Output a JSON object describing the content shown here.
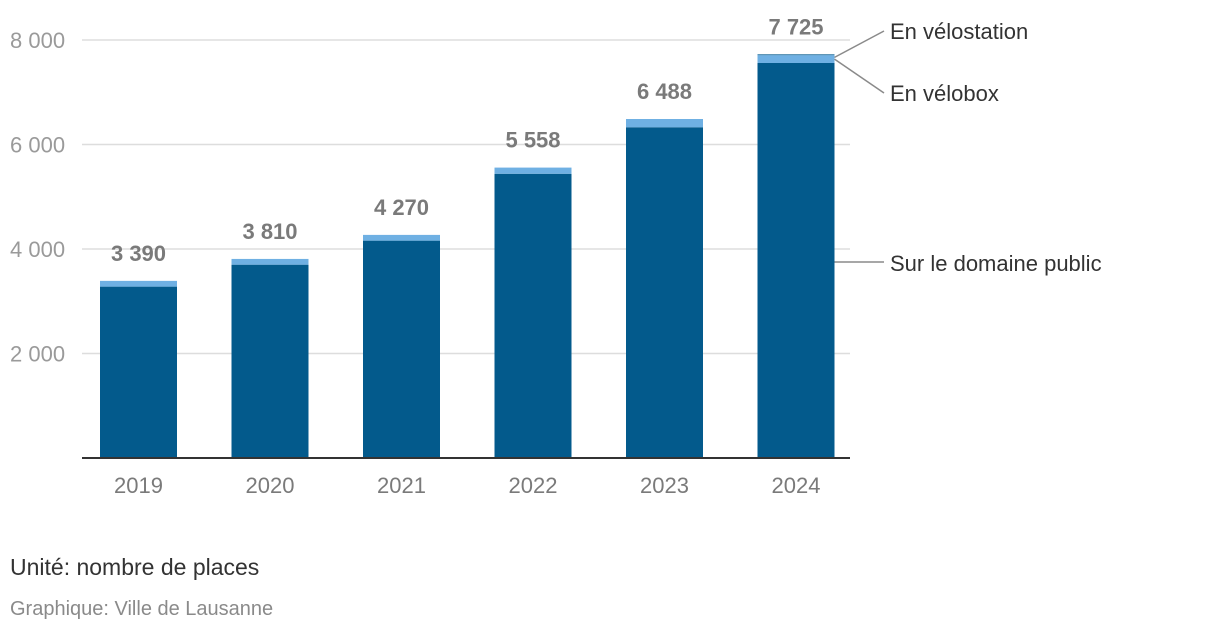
{
  "chart_data": {
    "type": "bar",
    "stacked": true,
    "categories": [
      "2019",
      "2020",
      "2021",
      "2022",
      "2023",
      "2024"
    ],
    "series": [
      {
        "name": "Sur le domaine public",
        "color": "#035a8c",
        "values": [
          3280,
          3700,
          4160,
          5440,
          6330,
          7560
        ]
      },
      {
        "name": "En vélobox",
        "color": "#6fb0e3",
        "values": [
          110,
          110,
          110,
          118,
          158,
          150
        ]
      },
      {
        "name": "En vélostation",
        "color": "#035a8c",
        "values": [
          0,
          0,
          0,
          0,
          0,
          15
        ]
      }
    ],
    "totals": [
      3390,
      3810,
      4270,
      5558,
      6488,
      7725
    ],
    "total_labels": [
      "3 390",
      "3 810",
      "4 270",
      "5 558",
      "6 488",
      "7 725"
    ],
    "yticks": [
      2000,
      4000,
      6000,
      8000
    ],
    "ytick_labels": [
      "2 000",
      "4 000",
      "6 000",
      "8 000"
    ],
    "ylim": [
      0,
      8000
    ],
    "grid": true,
    "legend": "direct labels at right of last bar"
  },
  "footer": {
    "unit": "Unité: nombre de places",
    "source": "Graphique: Ville de Lausanne"
  }
}
